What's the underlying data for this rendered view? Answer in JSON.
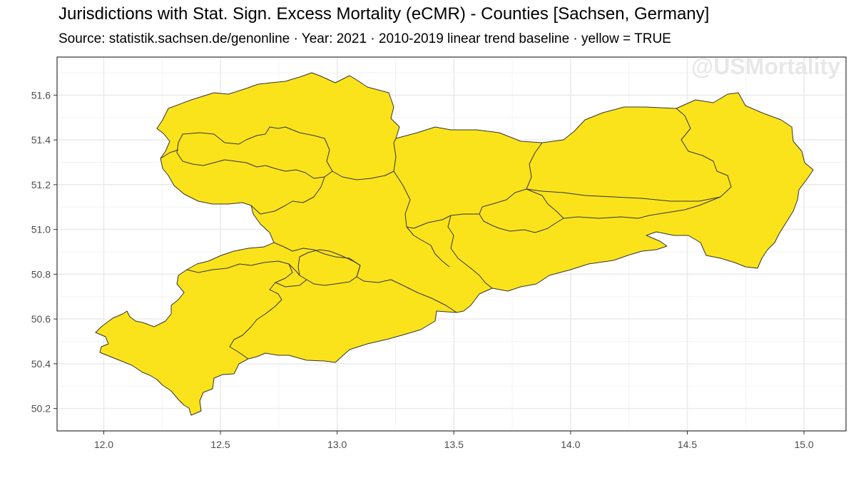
{
  "title": "Jurisdictions with Stat. Sign. Excess Mortality (eCMR) - Counties [Sachsen, Germany]",
  "subtitle": "Source: statistik.sachsen.de/genonline · Year: 2021 · 2010-2019 linear trend baseline · yellow = TRUE",
  "watermark": "@USMortality",
  "colors": {
    "fill_true": "#fbe31b",
    "border": "#333333",
    "grid": "#ebebeb",
    "panel_border": "#333333"
  },
  "axes": {
    "x_ticks": [
      "12.0",
      "12.5",
      "13.0",
      "13.5",
      "14.0",
      "14.5",
      "15.0"
    ],
    "y_ticks": [
      "51.6",
      "51.4",
      "51.2",
      "51.0",
      "50.8",
      "50.6",
      "50.4",
      "50.2"
    ],
    "xlim": [
      11.8,
      15.18
    ],
    "ylim": [
      50.1,
      51.77
    ]
  },
  "map_data": {
    "region": "Sachsen, Germany",
    "level": "Counties",
    "year": 2021,
    "legend_meaning": "yellow = TRUE",
    "all_counties_significant": true
  }
}
